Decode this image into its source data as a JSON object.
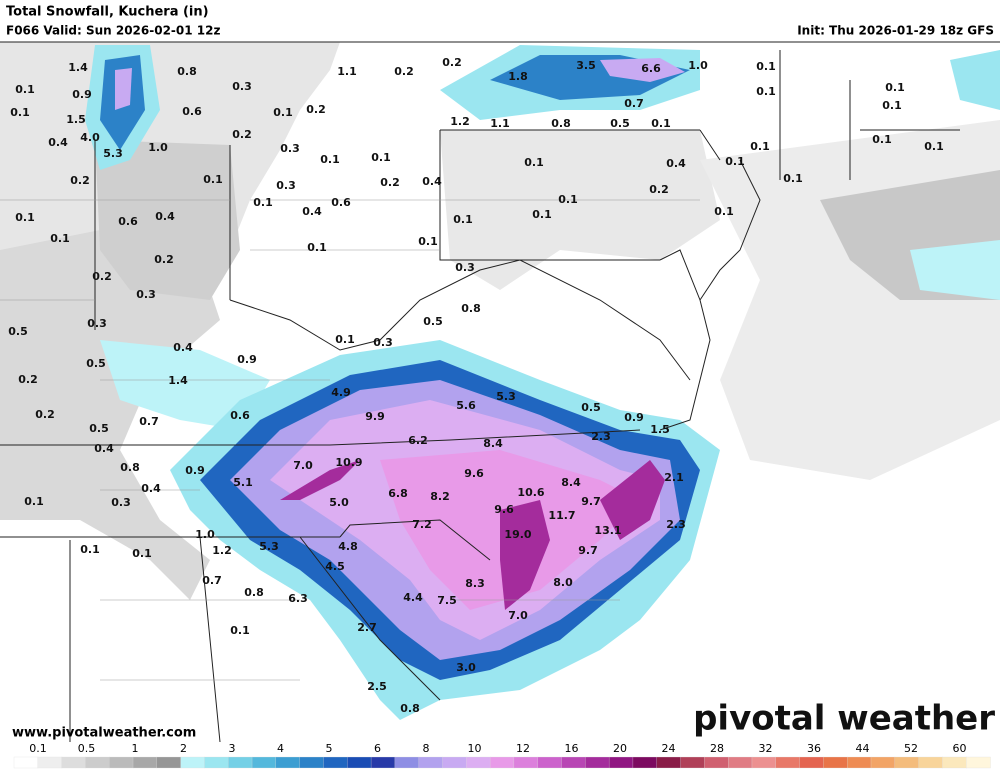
{
  "header": {
    "title": "Total Snowfall, Kuchera (in)",
    "valid": "F066 Valid: Sun 2026-02-01 12z",
    "init": "Init: Thu 2026-01-29 18z GFS"
  },
  "watermark": {
    "site": "www.pivotalweather.com",
    "logo": "pivotal weather"
  },
  "map_labels": [
    "1.4",
    "0.8",
    "0.1",
    "0.9",
    "0.3",
    "0.1",
    "1.5",
    "0.6",
    "0.1",
    "0.2",
    "0.4",
    "4.0",
    "5.3",
    "1.0",
    "0.2",
    "0.3",
    "0.1",
    "0.1",
    "0.2",
    "0.1",
    "0.3",
    "0.2",
    "0.4",
    "0.1",
    "0.6",
    "0.4",
    "0.6",
    "0.4",
    "0.1",
    "0.1",
    "0.1",
    "0.1",
    "0.2",
    "0.2",
    "0.3",
    "0.3",
    "0.8",
    "0.5",
    "0.5",
    "0.3",
    "0.1",
    "0.3",
    "0.4",
    "0.9",
    "0.5",
    "0.2",
    "1.4",
    "4.9",
    "9.9",
    "5.6",
    "5.3",
    "0.5",
    "0.2",
    "0.6",
    "0.7",
    "0.5",
    "6.2",
    "8.4",
    "2.3",
    "0.9",
    "1.5",
    "0.4",
    "7.0",
    "10.9",
    "9.6",
    "0.8",
    "0.9",
    "0.4",
    "5.1",
    "8.4",
    "2.1",
    "6.8",
    "8.2",
    "10.6",
    "9.7",
    "0.1",
    "0.3",
    "5.0",
    "9.6",
    "11.7",
    "2.3",
    "7.2",
    "19.0",
    "13.1",
    "1.0",
    "0.1",
    "0.1",
    "1.2",
    "5.3",
    "4.8",
    "9.7",
    "4.5",
    "0.7",
    "8.3",
    "8.0",
    "0.8",
    "6.3",
    "4.4",
    "7.5",
    "7.0",
    "0.1",
    "2.7",
    "3.0",
    "2.5",
    "0.8",
    "0.2",
    "1.8",
    "3.5",
    "6.6",
    "1.0",
    "0.1",
    "0.2",
    "1.1",
    "0.1",
    "0.1",
    "0.7",
    "1.2",
    "1.1",
    "0.8",
    "0.5",
    "0.1",
    "0.1",
    "0.1",
    "0.1",
    "0.1",
    "0.1",
    "0.4",
    "0.1",
    "0.1",
    "0.2",
    "0.1",
    "0.1",
    "0.1",
    "0.1"
  ],
  "legend": {
    "ticks": [
      0.1,
      0.5,
      1,
      2,
      3,
      4,
      5,
      6,
      8,
      10,
      12,
      16,
      20,
      24,
      28,
      32,
      36,
      44,
      52,
      60
    ],
    "colors": [
      "#ffffff",
      "#eeeeee",
      "#dddddd",
      "#cccccc",
      "#bbbbbb",
      "#a8a8a8",
      "#969696",
      "#bdf3f8",
      "#9be6f0",
      "#74d0e6",
      "#54b8dc",
      "#3c9ed2",
      "#2c82c8",
      "#2066c0",
      "#1a4cb4",
      "#283aa8",
      "#8e8ee4",
      "#b2a2ee",
      "#c8aaf2",
      "#dcaef2",
      "#e89ae8",
      "#dc80dc",
      "#cc62cc",
      "#b846b4",
      "#a42c9c",
      "#901682",
      "#7c0a60",
      "#8a1c48",
      "#b04058",
      "#d06070",
      "#e07c84",
      "#ec9090",
      "#e87868",
      "#e46450",
      "#e87448",
      "#ee8c54",
      "#f2a466",
      "#f4bc7c",
      "#f8d49a",
      "#fbe8bc",
      "#fff6dc"
    ]
  }
}
